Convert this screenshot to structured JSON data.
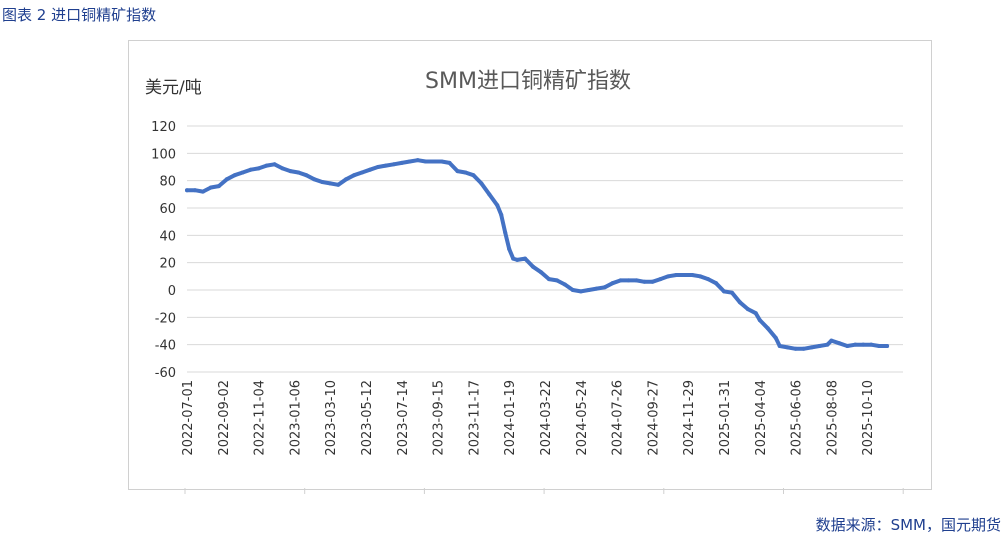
{
  "caption": "图表 2 进口铜精矿指数",
  "source": "数据来源：SMM，国元期货",
  "colors": {
    "line": "#4472c4",
    "grid": "#d9d9d9",
    "caption": "#1f3f8f"
  },
  "chart_data": {
    "type": "line",
    "title": "SMM进口铜精矿指数",
    "ylabel": "美元/吨",
    "xlabel": "",
    "ylim": [
      -60,
      120
    ],
    "yticks": [
      120,
      100,
      80,
      60,
      40,
      20,
      0,
      -20,
      -40,
      -60
    ],
    "grid": true,
    "x_tick_labels": [
      "2022-07-01",
      "2022-09-02",
      "2022-11-04",
      "2023-01-06",
      "2023-03-10",
      "2023-05-12",
      "2023-07-14",
      "2023-09-15",
      "2023-11-17",
      "2024-01-19",
      "2024-03-22",
      "2024-05-24",
      "2024-07-26",
      "2024-09-27",
      "2024-11-29",
      "2025-01-31",
      "2025-04-04",
      "2025-06-06",
      "2025-08-08",
      "2025-10-10"
    ],
    "series": [
      {
        "values": [
          [
            "2022-07-01",
            73
          ],
          [
            "2022-07-15",
            73
          ],
          [
            "2022-07-29",
            72
          ],
          [
            "2022-08-12",
            75
          ],
          [
            "2022-08-26",
            76
          ],
          [
            "2022-09-09",
            81
          ],
          [
            "2022-09-23",
            84
          ],
          [
            "2022-10-07",
            86
          ],
          [
            "2022-10-21",
            88
          ],
          [
            "2022-11-04",
            89
          ],
          [
            "2022-11-18",
            91
          ],
          [
            "2022-12-02",
            92
          ],
          [
            "2022-12-16",
            89
          ],
          [
            "2022-12-30",
            87
          ],
          [
            "2023-01-13",
            86
          ],
          [
            "2023-01-27",
            84
          ],
          [
            "2023-02-10",
            81
          ],
          [
            "2023-02-24",
            79
          ],
          [
            "2023-03-10",
            78
          ],
          [
            "2023-03-24",
            77
          ],
          [
            "2023-04-07",
            81
          ],
          [
            "2023-04-21",
            84
          ],
          [
            "2023-05-05",
            86
          ],
          [
            "2023-05-19",
            88
          ],
          [
            "2023-06-02",
            90
          ],
          [
            "2023-06-16",
            91
          ],
          [
            "2023-06-30",
            92
          ],
          [
            "2023-07-14",
            93
          ],
          [
            "2023-07-28",
            94
          ],
          [
            "2023-08-11",
            95
          ],
          [
            "2023-08-25",
            94
          ],
          [
            "2023-09-08",
            94
          ],
          [
            "2023-09-22",
            94
          ],
          [
            "2023-10-06",
            93
          ],
          [
            "2023-10-20",
            87
          ],
          [
            "2023-11-03",
            86
          ],
          [
            "2023-11-17",
            84
          ],
          [
            "2023-12-01",
            78
          ],
          [
            "2023-12-15",
            70
          ],
          [
            "2023-12-29",
            62
          ],
          [
            "2024-01-05",
            55
          ],
          [
            "2024-01-12",
            42
          ],
          [
            "2024-01-19",
            30
          ],
          [
            "2024-01-26",
            23
          ],
          [
            "2024-02-02",
            22
          ],
          [
            "2024-02-16",
            23
          ],
          [
            "2024-03-01",
            17
          ],
          [
            "2024-03-15",
            13
          ],
          [
            "2024-03-29",
            8
          ],
          [
            "2024-04-12",
            7
          ],
          [
            "2024-04-26",
            4
          ],
          [
            "2024-05-10",
            0
          ],
          [
            "2024-05-24",
            -1
          ],
          [
            "2024-06-07",
            0
          ],
          [
            "2024-06-21",
            1
          ],
          [
            "2024-07-05",
            2
          ],
          [
            "2024-07-19",
            5
          ],
          [
            "2024-08-02",
            7
          ],
          [
            "2024-08-16",
            7
          ],
          [
            "2024-08-30",
            7
          ],
          [
            "2024-09-13",
            6
          ],
          [
            "2024-09-27",
            6
          ],
          [
            "2024-10-11",
            8
          ],
          [
            "2024-10-25",
            10
          ],
          [
            "2024-11-08",
            11
          ],
          [
            "2024-11-22",
            11
          ],
          [
            "2024-12-06",
            11
          ],
          [
            "2024-12-20",
            10
          ],
          [
            "2025-01-03",
            8
          ],
          [
            "2025-01-17",
            5
          ],
          [
            "2025-01-31",
            -1
          ],
          [
            "2025-02-14",
            -2
          ],
          [
            "2025-02-28",
            -9
          ],
          [
            "2025-03-14",
            -14
          ],
          [
            "2025-03-28",
            -17
          ],
          [
            "2025-04-04",
            -22
          ],
          [
            "2025-04-18",
            -28
          ],
          [
            "2025-05-02",
            -35
          ],
          [
            "2025-05-09",
            -41
          ],
          [
            "2025-05-23",
            -42
          ],
          [
            "2025-06-06",
            -43
          ],
          [
            "2025-06-20",
            -43
          ],
          [
            "2025-07-04",
            -42
          ],
          [
            "2025-07-18",
            -41
          ],
          [
            "2025-08-01",
            -40
          ],
          [
            "2025-08-08",
            -37
          ],
          [
            "2025-08-22",
            -39
          ],
          [
            "2025-09-05",
            -41
          ],
          [
            "2025-09-19",
            -40
          ],
          [
            "2025-10-03",
            -40
          ],
          [
            "2025-10-17",
            -40
          ],
          [
            "2025-10-31",
            -41
          ],
          [
            "2025-11-14",
            -41
          ]
        ]
      }
    ]
  }
}
